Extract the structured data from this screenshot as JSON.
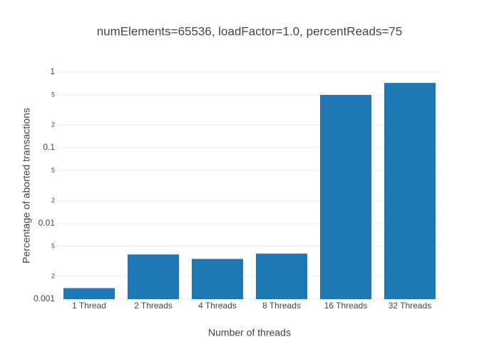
{
  "chart_data": {
    "type": "bar",
    "title": "numElements=65536, loadFactor=1.0, percentReads=75",
    "x_label": "Number of threads",
    "y_label": "Percentage of aborted transactions",
    "categories": [
      "1 Thread",
      "2 Threads",
      "4 Threads",
      "8 Threads",
      "16 Threads",
      "32 Threads"
    ],
    "values": [
      0.0014,
      0.0039,
      0.0034,
      0.004,
      0.5,
      0.72
    ],
    "color": "#1f77b4",
    "y_scale": "log",
    "ylim": [
      0.001,
      1
    ],
    "yticks": [
      0.001,
      {
        "value": 0.002,
        "label": "2"
      },
      {
        "value": 0.005,
        "label": "5"
      },
      0.01,
      {
        "value": 0.02,
        "label": "2"
      },
      {
        "value": 0.05,
        "label": "5"
      },
      0.1,
      {
        "value": 0.2,
        "label": "2"
      },
      {
        "value": 0.5,
        "label": "5"
      },
      1
    ],
    "grid": true
  }
}
